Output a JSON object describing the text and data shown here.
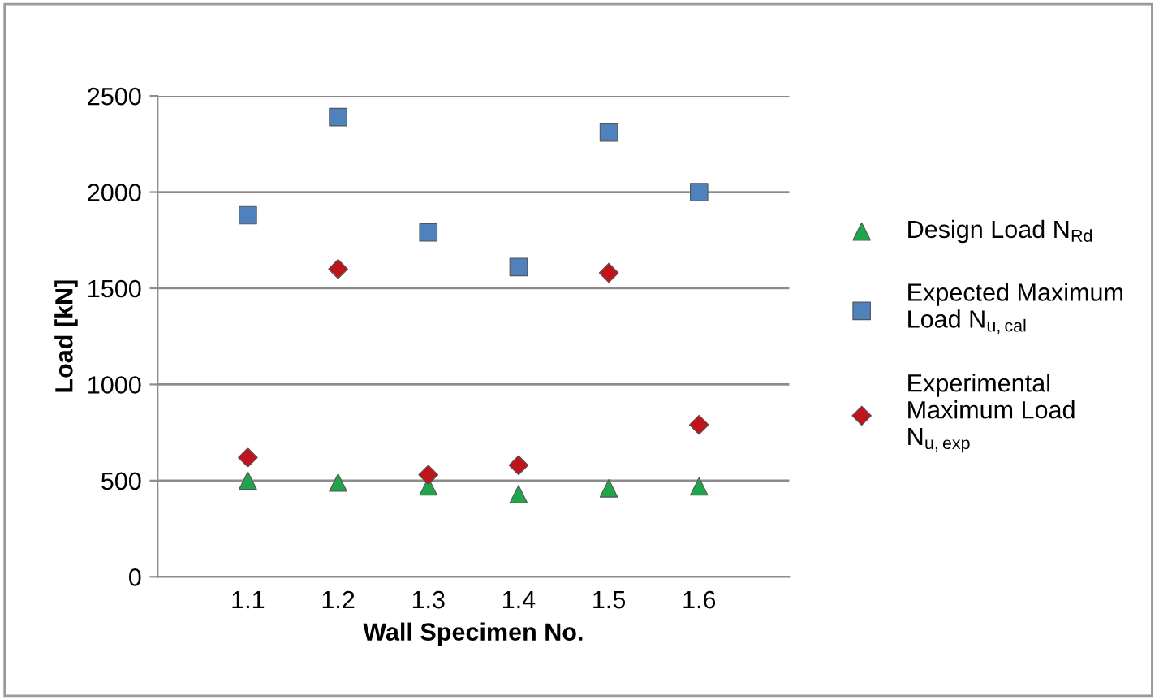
{
  "chart_data": {
    "type": "scatter",
    "xlabel": "Wall Specimen No.",
    "ylabel": "Load [kN]",
    "categories": [
      "1.1",
      "1.2",
      "1.3",
      "1.4",
      "1.5",
      "1.6"
    ],
    "series": [
      {
        "name": "Design Load N$_{Rd}$",
        "color": "#1fa54a",
        "marker": "triangle",
        "values": [
          500,
          490,
          470,
          430,
          460,
          470
        ]
      },
      {
        "name": "Expected Maximum\nLoad N$_{u,cal}$",
        "color": "#4f81bd",
        "marker": "square",
        "values": [
          1880,
          2390,
          1790,
          1610,
          2310,
          2000
        ]
      },
      {
        "name": "Experimental\nMaximum Load\nN$_{u,exp}$",
        "color": "#c0141c",
        "marker": "diamond",
        "values": [
          620,
          1600,
          530,
          580,
          1580,
          790
        ]
      }
    ],
    "ylim": [
      0,
      2500
    ],
    "yticks": [
      0,
      500,
      1000,
      1500,
      2000,
      2500
    ],
    "grid": "y",
    "legend": "right"
  }
}
